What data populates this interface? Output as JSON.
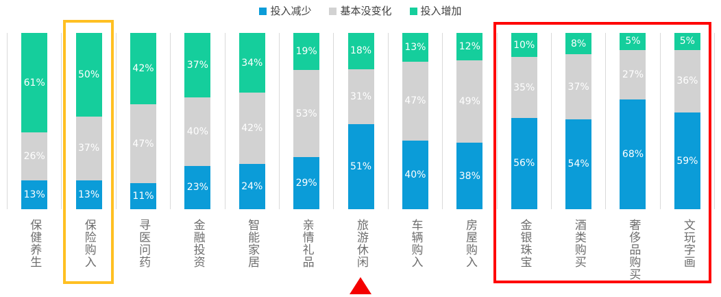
{
  "chart_data": {
    "type": "bar",
    "stacked": true,
    "orientation": "vertical",
    "unit": "%",
    "normalized_to_100": true,
    "grid": "vertical-category-separators",
    "legend_position": "top-center",
    "categories": [
      "保健养生",
      "保险购入",
      "寻医问药",
      "金融投资",
      "智能家居",
      "亲情礼品",
      "旅游休闲",
      "车辆购入",
      "房屋购入",
      "金银珠宝",
      "酒类购买",
      "奢侈品购买",
      "文玩字画"
    ],
    "series": [
      {
        "name": "投入减少",
        "color": "#0B9CD8",
        "stack_order": "bottom",
        "values": [
          13,
          13,
          11,
          23,
          24,
          29,
          51,
          40,
          38,
          56,
          54,
          68,
          59
        ]
      },
      {
        "name": "基本没变化",
        "color": "#D2D2D2",
        "stack_order": "middle",
        "values": [
          26,
          37,
          47,
          40,
          42,
          53,
          31,
          47,
          49,
          35,
          37,
          27,
          36
        ]
      },
      {
        "name": "投入增加",
        "color": "#15CE9C",
        "stack_order": "top",
        "values": [
          61,
          50,
          42,
          37,
          34,
          19,
          18,
          13,
          12,
          10,
          8,
          5,
          5
        ]
      }
    ],
    "data_label_format": "{value}%",
    "data_label_color": "#FFFFFF",
    "annotations": {
      "yellow_highlight_box": {
        "color": "#FFC022",
        "categories": [
          "保险购入"
        ]
      },
      "red_highlight_box": {
        "color": "#FF0000",
        "categories": [
          "金银珠宝",
          "酒类购买",
          "奢侈品购买",
          "文玩字画"
        ]
      },
      "red_triangle_marker": {
        "color": "#F40000",
        "category": "旅游休闲",
        "shape": "up-triangle"
      }
    },
    "colors": {
      "gridline": "#D9D9D9",
      "category_label_text": "#6E6E6E",
      "legend_text": "#404040",
      "background": "#FFFFFF"
    }
  }
}
